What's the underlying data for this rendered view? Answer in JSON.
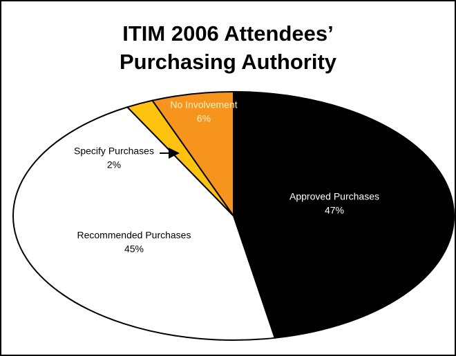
{
  "chart_data": {
    "type": "pie",
    "title": [
      "ITIM 2006 Attendees’",
      "Purchasing Authority"
    ],
    "categories": [
      "Approved Purchases",
      "Recommended Purchases",
      "Specify Purchases",
      "No Involvement"
    ],
    "values": [
      47,
      45,
      2,
      6
    ],
    "value_labels": [
      "47%",
      "45%",
      "2%",
      "6%"
    ],
    "colors": [
      "#000000",
      "#ffffff",
      "#ffc20e",
      "#f7941d"
    ]
  }
}
